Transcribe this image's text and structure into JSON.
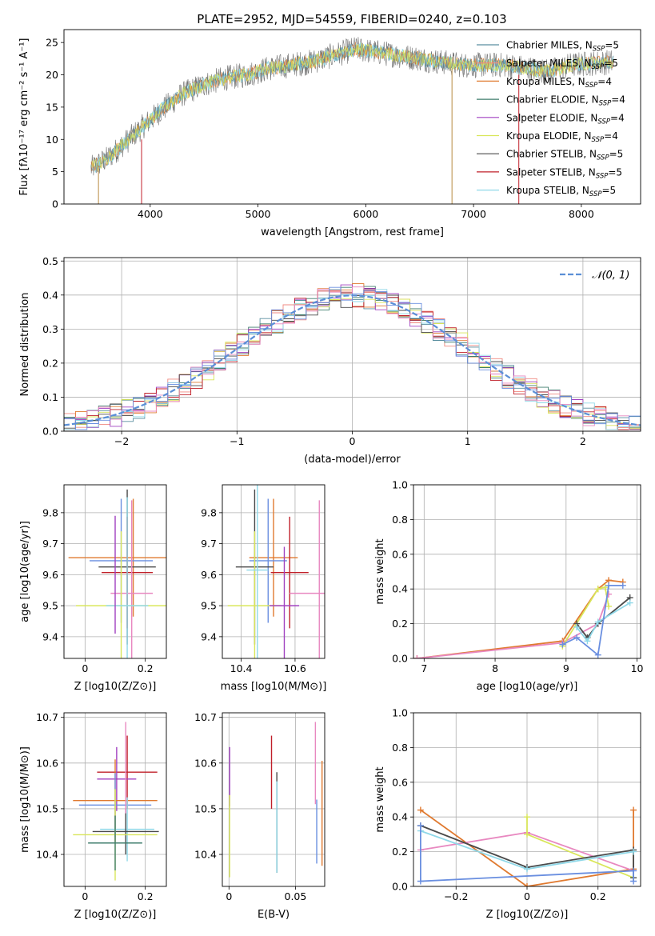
{
  "figure": {
    "title": "PLATE=2952, MJD=54559, FIBERID=0240, z=0.103"
  },
  "colors": {
    "Chabrier MILES": "#5a8fa0",
    "Salpeter MILES": "#f08a80",
    "Kroupa MILES": "#e07a30",
    "Chabrier ELODIE": "#3f7d6d",
    "Salpeter ELODIE": "#a040c0",
    "Kroupa ELODIE": "#d9e65a",
    "Chabrier STELIB": "#4a4a4a",
    "Salpeter STELIB": "#c0202a",
    "Kroupa STELIB": "#8fd8e8",
    "pink": "#e888c0",
    "blue": "#6a8fe0",
    "normal": "#5b8fd6"
  },
  "chart_data": [
    {
      "id": "spectrum",
      "type": "line",
      "title": "PLATE=2952, MJD=54559, FIBERID=0240, z=0.103",
      "xlabel": "wavelength [Angstrom, rest frame]",
      "ylabel": "Flux [fλ10⁻¹⁷ erg cm⁻² s⁻¹ A⁻¹]",
      "xlim": [
        3200,
        8550
      ],
      "ylim": [
        0,
        27
      ],
      "xticks": [
        4000,
        5000,
        6000,
        7000,
        8000
      ],
      "yticks": [
        0,
        5,
        10,
        15,
        20,
        25
      ],
      "grid": false,
      "legend_position": "top-right",
      "legend": [
        "Chabrier MILES, N_SSP=5",
        "Salpeter MILES, N_SSP=5",
        "Kroupa MILES, N_SSP=4",
        "Chabrier ELODIE, N_SSP=4",
        "Salpeter ELODIE, N_SSP=4",
        "Kroupa ELODIE, N_SSP=4",
        "Chabrier STELIB, N_SSP=5",
        "Salpeter STELIB, N_SSP=5",
        "Kroupa STELIB, N_SSP=5"
      ],
      "continuum": {
        "x": [
          3450,
          3600,
          3800,
          3900,
          4000,
          4100,
          4300,
          4500,
          4700,
          4900,
          5100,
          5300,
          5500,
          5700,
          5900,
          6100,
          6300,
          6500,
          6700,
          6900,
          7100,
          7300,
          7500,
          7700,
          7900,
          8100,
          8300
        ],
        "y": [
          5.5,
          7,
          10,
          11.5,
          13,
          14.5,
          17,
          18.5,
          19.5,
          20,
          21,
          21.5,
          22,
          23,
          24,
          23.5,
          23,
          22.5,
          22,
          21.5,
          21.5,
          21.5,
          21,
          20.5,
          21.5,
          21.8,
          22
        ]
      },
      "spikes": [
        {
          "x": 3520,
          "y0": 0,
          "y1": 6
        },
        {
          "x": 3920,
          "y0": 0,
          "y1": 10
        },
        {
          "x": 6800,
          "y0": 0,
          "y1": 21
        },
        {
          "x": 7420,
          "y0": 0,
          "y1": 20
        }
      ]
    },
    {
      "id": "residuals",
      "type": "line",
      "xlabel": "(data-model)/error",
      "ylabel": "Normed distribution",
      "xlim": [
        -2.5,
        2.5
      ],
      "ylim": [
        0,
        0.51
      ],
      "xticks": [
        -2,
        -1,
        0,
        1,
        2
      ],
      "yticks": [
        0.0,
        0.1,
        0.2,
        0.3,
        0.4,
        0.5
      ],
      "grid": true,
      "legend": [
        "𝒩(0, 1)"
      ],
      "legend_position": "top-right",
      "hist_bin_width": 0.1
    },
    {
      "id": "age-Z",
      "type": "scatter",
      "xlabel": "Z [log10(Z/Z⊙)]",
      "ylabel": "age  [log10(age/yr)]",
      "xlim": [
        -0.07,
        0.27
      ],
      "ylim": [
        9.33,
        9.89
      ],
      "xticks": [
        0.0,
        0.2
      ],
      "yticks": [
        9.4,
        9.5,
        9.6,
        9.7,
        9.8
      ],
      "grid": true,
      "points": [
        {
          "color": "Kroupa MILES",
          "x": 0.16,
          "xerr": 0.215,
          "y": 9.655,
          "yerr": 0.19
        },
        {
          "color": "blue",
          "x": 0.12,
          "xerr": 0.105,
          "y": 9.645,
          "yerr": 0.2
        },
        {
          "color": "Chabrier STELIB",
          "x": 0.14,
          "xerr": 0.095,
          "y": 9.625,
          "yerr": 0.25
        },
        {
          "color": "Salpeter STELIB",
          "x": 0.14,
          "xerr": 0.085,
          "y": 9.607,
          "yerr": 0.18
        },
        {
          "color": "pink",
          "x": 0.155,
          "xerr": 0.07,
          "y": 9.54,
          "yerr": 0.3
        },
        {
          "color": "Kroupa ELODIE",
          "x": 0.12,
          "xerr": 0.15,
          "y": 9.5,
          "yerr": 0.24
        },
        {
          "color": "Kroupa STELIB",
          "x": 0.14,
          "xerr": 0.07,
          "y": 9.5,
          "yerr": 0.35
        },
        {
          "color": "Salpeter ELODIE",
          "x": 0.1,
          "xerr": 0.0,
          "y": 9.6,
          "yerr": 0.19
        }
      ]
    },
    {
      "id": "age-mass",
      "type": "scatter",
      "xlabel": "mass [log10(M/M⊙)]",
      "ylabel": "",
      "xlim": [
        10.33,
        10.71
      ],
      "ylim": [
        9.33,
        9.89
      ],
      "xticks": [
        10.4,
        10.6
      ],
      "yticks": [
        9.4,
        9.5,
        9.6,
        9.7,
        9.8
      ],
      "grid": true,
      "points": [
        {
          "color": "Kroupa MILES",
          "x": 10.52,
          "xerr": 0.09,
          "y": 9.655,
          "yerr": 0.19
        },
        {
          "color": "blue",
          "x": 10.5,
          "xerr": 0.07,
          "y": 9.645,
          "yerr": 0.2
        },
        {
          "color": "Chabrier STELIB",
          "x": 10.45,
          "xerr": 0.07,
          "y": 9.625,
          "yerr": 0.25
        },
        {
          "color": "Salpeter STELIB",
          "x": 10.58,
          "xerr": 0.07,
          "y": 9.607,
          "yerr": 0.18
        },
        {
          "color": "pink",
          "x": 10.69,
          "xerr": 0.11,
          "y": 9.54,
          "yerr": 0.3
        },
        {
          "color": "Kroupa ELODIE",
          "x": 10.45,
          "xerr": 0.1,
          "y": 9.5,
          "yerr": 0.24
        },
        {
          "color": "Kroupa STELIB",
          "x": 10.46,
          "xerr": 0.04,
          "y": 9.615,
          "yerr": 0.35
        },
        {
          "color": "Salpeter ELODIE",
          "x": 10.56,
          "xerr": 0.055,
          "y": 9.5,
          "yerr": 0.19
        }
      ]
    },
    {
      "id": "weight-age",
      "type": "line",
      "xlabel": "age  [log10(age/yr)]",
      "ylabel": "mass weight",
      "xlim": [
        6.85,
        10.05
      ],
      "ylim": [
        0.0,
        1.0
      ],
      "xticks": [
        7,
        8,
        9,
        10
      ],
      "yticks": [
        0.0,
        0.2,
        0.4,
        0.6,
        0.8,
        1.0
      ],
      "grid": true,
      "series": [
        {
          "color": "Kroupa MILES",
          "x": [
            6.9,
            8.95,
            9.45,
            9.6,
            9.8
          ],
          "y": [
            0.0,
            0.1,
            0.4,
            0.45,
            0.44
          ]
        },
        {
          "color": "pink",
          "x": [
            6.9,
            8.95,
            9.45,
            9.6
          ],
          "y": [
            0.0,
            0.09,
            0.2,
            0.37
          ]
        },
        {
          "color": "Kroupa ELODIE",
          "x": [
            8.95,
            9.45,
            9.55,
            9.6
          ],
          "y": [
            0.07,
            0.4,
            0.41,
            0.3
          ]
        },
        {
          "color": "Chabrier STELIB",
          "x": [
            9.15,
            9.3,
            9.45,
            9.9
          ],
          "y": [
            0.2,
            0.12,
            0.2,
            0.35
          ]
        },
        {
          "color": "Kroupa STELIB",
          "x": [
            9.15,
            9.3,
            9.45,
            9.9
          ],
          "y": [
            0.18,
            0.1,
            0.21,
            0.32
          ]
        },
        {
          "color": "blue",
          "x": [
            8.95,
            9.15,
            9.45,
            9.6,
            9.8
          ],
          "y": [
            0.08,
            0.12,
            0.02,
            0.42,
            0.42
          ]
        }
      ]
    },
    {
      "id": "mass-Z",
      "type": "scatter",
      "xlabel": "Z [log10(Z/Z⊙)]",
      "ylabel": "mass [log10(M/M⊙)]",
      "xlim": [
        -0.07,
        0.27
      ],
      "ylim": [
        10.33,
        10.71
      ],
      "xticks": [
        0.0,
        0.2
      ],
      "yticks": [
        10.4,
        10.5,
        10.6,
        10.7
      ],
      "grid": true,
      "points": [
        {
          "color": "Salpeter STELIB",
          "x": 0.14,
          "xerr": 0.1,
          "y": 10.58,
          "yerr": 0.08
        },
        {
          "color": "Salpeter ELODIE",
          "x": 0.105,
          "xerr": 0.065,
          "y": 10.565,
          "yerr": 0.07
        },
        {
          "color": "Kroupa MILES",
          "x": 0.1,
          "xerr": 0.14,
          "y": 10.518,
          "yerr": 0.09
        },
        {
          "color": "blue",
          "x": 0.1,
          "xerr": 0.12,
          "y": 10.508,
          "yerr": 0.07
        },
        {
          "color": "Kroupa STELIB",
          "x": 0.14,
          "xerr": 0.09,
          "y": 10.455,
          "yerr": 0.07
        },
        {
          "color": "Chabrier STELIB",
          "x": 0.135,
          "xerr": 0.11,
          "y": 10.45,
          "yerr": 0.05
        },
        {
          "color": "Kroupa ELODIE",
          "x": 0.1,
          "xerr": 0.14,
          "y": 10.443,
          "yerr": 0.1
        },
        {
          "color": "Chabrier ELODIE",
          "x": 0.1,
          "xerr": 0.09,
          "y": 10.425,
          "yerr": 0.06
        },
        {
          "color": "pink",
          "x": 0.135,
          "xerr": 0.0,
          "y": 10.59,
          "yerr": 0.1
        }
      ]
    },
    {
      "id": "mass-EBV",
      "type": "scatter",
      "xlabel": "E(B-V)",
      "ylabel": "",
      "xlim": [
        -0.005,
        0.072
      ],
      "ylim": [
        10.33,
        10.71
      ],
      "xticks": [
        0.0,
        0.05
      ],
      "yticks": [
        10.4,
        10.5,
        10.6,
        10.7
      ],
      "grid": true,
      "points": [
        {
          "color": "Salpeter ELODIE",
          "x": 0.0005,
          "y": 10.57,
          "yerr": 0.065
        },
        {
          "color": "Kroupa ELODIE",
          "x": 0.0005,
          "y": 10.44,
          "yerr": 0.09
        },
        {
          "color": "Salpeter STELIB",
          "x": 0.032,
          "y": 10.58,
          "yerr": 0.08
        },
        {
          "color": "Chabrier STELIB",
          "x": 0.036,
          "y": 10.47,
          "yerr": 0.11
        },
        {
          "color": "Kroupa STELIB",
          "x": 0.036,
          "y": 10.46,
          "yerr": 0.1
        },
        {
          "color": "pink",
          "x": 0.065,
          "y": 10.6,
          "yerr": 0.09
        },
        {
          "color": "blue",
          "x": 0.066,
          "y": 10.45,
          "yerr": 0.07
        },
        {
          "color": "Kroupa MILES",
          "x": 0.07,
          "y": 10.49,
          "yerr": 0.115
        }
      ]
    },
    {
      "id": "weight-Z",
      "type": "line",
      "xlabel": "Z [log10(Z/Z⊙)]",
      "ylabel": "mass weight",
      "xlim": [
        -0.32,
        0.32
      ],
      "ylim": [
        0.0,
        1.0
      ],
      "xticks": [
        -0.2,
        0.0,
        0.2
      ],
      "yticks": [
        0.0,
        0.2,
        0.4,
        0.6,
        0.8,
        1.0
      ],
      "grid": true,
      "series": [
        {
          "color": "Kroupa MILES",
          "x": [
            -0.3,
            0.0,
            0.3,
            0.3
          ],
          "y": [
            0.44,
            0.0,
            0.1,
            0.44
          ]
        },
        {
          "color": "pink",
          "x": [
            -0.3,
            0.0,
            0.3
          ],
          "y": [
            0.21,
            0.31,
            0.09
          ]
        },
        {
          "color": "Kroupa ELODIE",
          "x": [
            0.0,
            0.0,
            0.3
          ],
          "y": [
            0.4,
            0.3,
            0.05
          ]
        },
        {
          "color": "Chabrier STELIB",
          "x": [
            -0.3,
            0.0,
            0.3,
            0.3
          ],
          "y": [
            0.35,
            0.11,
            0.21,
            0.05
          ]
        },
        {
          "color": "Kroupa STELIB",
          "x": [
            -0.3,
            0.0,
            0.3
          ],
          "y": [
            0.32,
            0.1,
            0.2
          ]
        },
        {
          "color": "blue",
          "x": [
            -0.3,
            -0.3,
            0.3,
            0.3
          ],
          "y": [
            0.35,
            0.03,
            0.09,
            0.03
          ]
        }
      ]
    }
  ]
}
